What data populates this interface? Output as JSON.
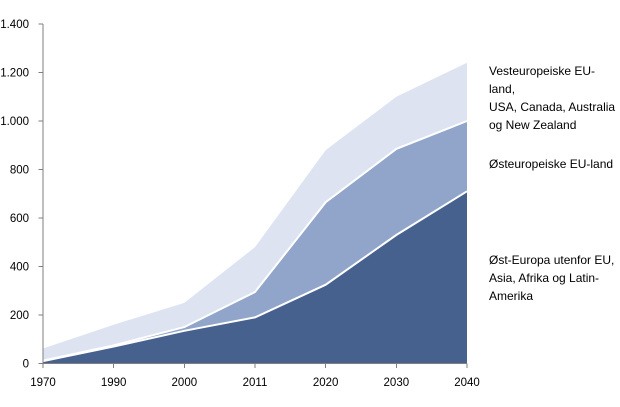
{
  "legend": {
    "items": [
      {
        "label": "Vesteuropeiske EU-land,\nUSA, Canada, Australia\nog New Zealand"
      },
      {
        "label": "Østeuropeiske EU-land"
      },
      {
        "label": "Øst-Europa utenfor EU,\nAsia, Afrika og Latin-\nAmerika"
      }
    ]
  },
  "chart_data": {
    "type": "area",
    "stacked": true,
    "title": "",
    "xlabel": "",
    "ylabel": "",
    "categories": [
      "1970",
      "1990",
      "2000",
      "2011",
      "2020",
      "2030",
      "2040"
    ],
    "series": [
      {
        "name": "Øst-Europa utenfor EU, Asia, Afrika og Latin-Amerika",
        "values": [
          10,
          70,
          135,
          190,
          325,
          530,
          710
        ],
        "color": "#47618e"
      },
      {
        "name": "Østeuropeiske EU-land",
        "values": [
          2,
          5,
          15,
          105,
          340,
          355,
          290
        ],
        "color": "#90a5c9"
      },
      {
        "name": "Vesteuropeiske EU-land, USA, Canada, Australia og New Zealand",
        "values": [
          50,
          85,
          100,
          185,
          215,
          215,
          240
        ],
        "color": "#dde3f1"
      }
    ],
    "stacked_totals": [
      62,
      160,
      250,
      480,
      880,
      1100,
      1240
    ],
    "ylim": [
      0,
      1400
    ],
    "y_ticks": [
      {
        "value": 0,
        "label": "0"
      },
      {
        "value": 200,
        "label": "200"
      },
      {
        "value": 400,
        "label": "400"
      },
      {
        "value": 600,
        "label": "600"
      },
      {
        "value": 800,
        "label": "800"
      },
      {
        "value": 1000,
        "label": "1.000"
      },
      {
        "value": 1200,
        "label": "1.200"
      },
      {
        "value": 1400,
        "label": "1.400"
      }
    ],
    "grid": false,
    "legend_position": "right",
    "axis_color": "#7f7f7f",
    "separator_color": "#ffffff",
    "text_color": "#000000",
    "background_color": "#ffffff"
  }
}
